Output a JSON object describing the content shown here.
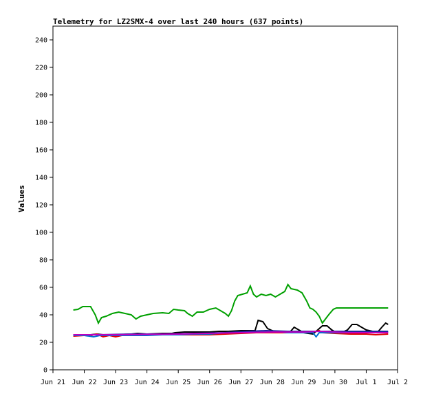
{
  "chart_data": {
    "type": "line",
    "title": "Telemetry for LZ2SMX-4 over last 240 hours (637 points)",
    "xlabel": "",
    "ylabel": "Values",
    "ylim": [
      0,
      250
    ],
    "yticks": [
      0,
      20,
      40,
      60,
      80,
      100,
      120,
      140,
      160,
      180,
      200,
      220,
      240
    ],
    "xlim": [
      0,
      11
    ],
    "xticks": [
      {
        "x": 0,
        "label": "Jun 21"
      },
      {
        "x": 1,
        "label": "Jun 22"
      },
      {
        "x": 2,
        "label": "Jun 23"
      },
      {
        "x": 3,
        "label": "Jun 24"
      },
      {
        "x": 4,
        "label": "Jun 25"
      },
      {
        "x": 5,
        "label": "Jun 26"
      },
      {
        "x": 6,
        "label": "Jun 27"
      },
      {
        "x": 7,
        "label": "Jun 28"
      },
      {
        "x": 8,
        "label": "Jun 29"
      },
      {
        "x": 9,
        "label": "Jun 30"
      },
      {
        "x": 10,
        "label": "Jul 1"
      },
      {
        "x": 11,
        "label": "Jul 2"
      }
    ],
    "grid": false,
    "series": [
      {
        "color": "#00a000",
        "points": [
          [
            0.65,
            43.5
          ],
          [
            0.8,
            44
          ],
          [
            0.95,
            46
          ],
          [
            1.2,
            46
          ],
          [
            1.35,
            40
          ],
          [
            1.45,
            34
          ],
          [
            1.55,
            38
          ],
          [
            1.7,
            39
          ],
          [
            1.9,
            41
          ],
          [
            2.1,
            42
          ],
          [
            2.3,
            41
          ],
          [
            2.5,
            40
          ],
          [
            2.65,
            37
          ],
          [
            2.8,
            39
          ],
          [
            3.0,
            40
          ],
          [
            3.2,
            41
          ],
          [
            3.5,
            41.5
          ],
          [
            3.7,
            41
          ],
          [
            3.85,
            44
          ],
          [
            4.0,
            43.5
          ],
          [
            4.2,
            43
          ],
          [
            4.3,
            41
          ],
          [
            4.45,
            39
          ],
          [
            4.6,
            42
          ],
          [
            4.8,
            42
          ],
          [
            5.0,
            44
          ],
          [
            5.2,
            45
          ],
          [
            5.35,
            43
          ],
          [
            5.5,
            41
          ],
          [
            5.6,
            39
          ],
          [
            5.7,
            43
          ],
          [
            5.8,
            50
          ],
          [
            5.9,
            54
          ],
          [
            6.05,
            55
          ],
          [
            6.2,
            56
          ],
          [
            6.3,
            61
          ],
          [
            6.4,
            55
          ],
          [
            6.5,
            53
          ],
          [
            6.65,
            55
          ],
          [
            6.8,
            54
          ],
          [
            6.95,
            55
          ],
          [
            7.1,
            53
          ],
          [
            7.25,
            55
          ],
          [
            7.4,
            57
          ],
          [
            7.5,
            62
          ],
          [
            7.6,
            59
          ],
          [
            7.8,
            58
          ],
          [
            7.95,
            56
          ],
          [
            8.1,
            50
          ],
          [
            8.2,
            45
          ],
          [
            8.3,
            44
          ],
          [
            8.4,
            42
          ],
          [
            8.5,
            39
          ],
          [
            8.6,
            34
          ],
          [
            8.7,
            37
          ],
          [
            8.8,
            40
          ],
          [
            8.95,
            44
          ],
          [
            9.05,
            45
          ],
          [
            9.3,
            45
          ],
          [
            9.6,
            45
          ],
          [
            10.0,
            45
          ],
          [
            10.4,
            45
          ],
          [
            10.7,
            45
          ]
        ]
      },
      {
        "color": "#000000",
        "points": [
          [
            0.65,
            25.5
          ],
          [
            1.0,
            25
          ],
          [
            1.2,
            25.5
          ],
          [
            1.4,
            26
          ],
          [
            1.6,
            25.5
          ],
          [
            2.0,
            25.5
          ],
          [
            2.5,
            26
          ],
          [
            2.7,
            26.5
          ],
          [
            3.0,
            26
          ],
          [
            3.5,
            26.5
          ],
          [
            3.8,
            26.5
          ],
          [
            3.9,
            27
          ],
          [
            4.2,
            27.5
          ],
          [
            4.6,
            27.5
          ],
          [
            5.0,
            27.5
          ],
          [
            5.3,
            28
          ],
          [
            5.6,
            28
          ],
          [
            6.0,
            28.5
          ],
          [
            6.45,
            28.5
          ],
          [
            6.55,
            36
          ],
          [
            6.7,
            35
          ],
          [
            6.85,
            30
          ],
          [
            7.0,
            28.5
          ],
          [
            7.2,
            27
          ],
          [
            7.4,
            27
          ],
          [
            7.55,
            27
          ],
          [
            7.7,
            31
          ],
          [
            7.85,
            29
          ],
          [
            8.0,
            27
          ],
          [
            8.15,
            26.5
          ],
          [
            8.3,
            26
          ],
          [
            8.45,
            29
          ],
          [
            8.6,
            32
          ],
          [
            8.75,
            32
          ],
          [
            8.9,
            29
          ],
          [
            9.05,
            27
          ],
          [
            9.2,
            27
          ],
          [
            9.4,
            29
          ],
          [
            9.55,
            33
          ],
          [
            9.7,
            33
          ],
          [
            9.85,
            31
          ],
          [
            10.0,
            29
          ],
          [
            10.2,
            28
          ],
          [
            10.35,
            27
          ],
          [
            10.5,
            31
          ],
          [
            10.62,
            34
          ],
          [
            10.7,
            33
          ]
        ]
      },
      {
        "color": "#e00000",
        "points": [
          [
            0.65,
            24.5
          ],
          [
            1.0,
            25
          ],
          [
            1.2,
            25
          ],
          [
            1.4,
            26
          ],
          [
            1.6,
            24
          ],
          [
            1.8,
            25
          ],
          [
            2.0,
            24
          ],
          [
            2.2,
            25
          ],
          [
            2.5,
            25
          ],
          [
            3.0,
            25.5
          ],
          [
            3.5,
            25.5
          ],
          [
            4.0,
            25.5
          ],
          [
            4.5,
            25.5
          ],
          [
            5.0,
            25.5
          ],
          [
            5.5,
            26
          ],
          [
            6.0,
            26.5
          ],
          [
            6.5,
            27
          ],
          [
            7.0,
            27
          ],
          [
            7.5,
            27
          ],
          [
            8.0,
            27
          ],
          [
            8.4,
            28
          ],
          [
            8.5,
            28.5
          ],
          [
            8.6,
            27
          ],
          [
            9.0,
            26.5
          ],
          [
            9.5,
            26
          ],
          [
            10.0,
            26
          ],
          [
            10.3,
            25.5
          ],
          [
            10.7,
            26
          ]
        ]
      },
      {
        "color": "#0070d0",
        "points": [
          [
            0.65,
            25
          ],
          [
            1.0,
            25
          ],
          [
            1.3,
            24
          ],
          [
            1.5,
            25
          ],
          [
            2.0,
            25
          ],
          [
            2.5,
            25
          ],
          [
            3.0,
            25
          ],
          [
            3.5,
            25.5
          ],
          [
            4.0,
            25.5
          ],
          [
            4.5,
            26
          ],
          [
            5.0,
            26
          ],
          [
            5.5,
            27
          ],
          [
            6.0,
            27.5
          ],
          [
            6.5,
            28
          ],
          [
            7.0,
            27.5
          ],
          [
            7.3,
            27.5
          ],
          [
            7.5,
            27
          ],
          [
            8.0,
            27
          ],
          [
            8.3,
            27
          ],
          [
            8.4,
            24
          ],
          [
            8.5,
            27
          ],
          [
            9.0,
            27
          ],
          [
            9.5,
            27
          ],
          [
            10.0,
            27
          ],
          [
            10.5,
            27
          ],
          [
            10.7,
            27.5
          ]
        ]
      },
      {
        "color": "#2020a0",
        "points": [
          [
            0.65,
            25.5
          ],
          [
            1.5,
            25.5
          ],
          [
            2.5,
            26
          ],
          [
            3.5,
            26
          ],
          [
            4.5,
            26.5
          ],
          [
            5.5,
            27
          ],
          [
            6.2,
            28
          ],
          [
            6.8,
            28.5
          ],
          [
            7.5,
            28
          ],
          [
            8.2,
            28
          ],
          [
            8.8,
            28
          ],
          [
            9.5,
            28
          ],
          [
            10.2,
            28
          ],
          [
            10.7,
            28
          ]
        ]
      },
      {
        "color": "#c000c0",
        "points": [
          [
            0.65,
            25.5
          ],
          [
            2.0,
            25.5
          ],
          [
            4.0,
            26
          ],
          [
            6.0,
            27
          ],
          [
            7.0,
            27.5
          ],
          [
            8.0,
            27.5
          ],
          [
            8.5,
            28
          ],
          [
            9.0,
            27.5
          ],
          [
            9.5,
            27
          ],
          [
            10.0,
            27
          ],
          [
            10.7,
            27
          ]
        ]
      }
    ]
  }
}
